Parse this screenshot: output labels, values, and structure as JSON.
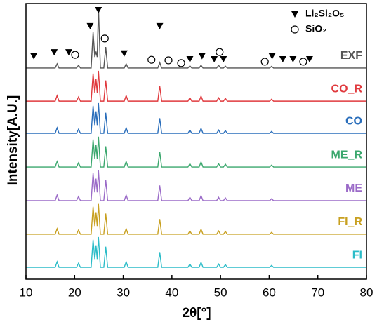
{
  "chart_data": {
    "type": "line",
    "xlabel": "2θ[°]",
    "ylabel": "Intensity[A.U.]",
    "xlim": [
      10,
      80
    ],
    "xticks": [
      10,
      20,
      30,
      40,
      50,
      60,
      70,
      80
    ],
    "ylim": [
      0,
      100
    ],
    "x": [
      10,
      16.0,
      16.4,
      16.8,
      20.4,
      20.8,
      21.2,
      23.4,
      23.8,
      24.15,
      24.4,
      24.65,
      24.9,
      25.3,
      26.0,
      26.4,
      26.8,
      30.2,
      30.6,
      31.0,
      37.1,
      37.5,
      37.9,
      43.3,
      43.7,
      44.1,
      45.6,
      46.0,
      46.4,
      49.2,
      49.6,
      50.0,
      50.6,
      51.0,
      51.4,
      60.1,
      60.5,
      60.9,
      80
    ],
    "series": [
      {
        "name": "EXF",
        "color": "#555555",
        "values": [
          76.6,
          76.6,
          78.1,
          76.6,
          76.6,
          77.6,
          76.6,
          76.6,
          89.6,
          80.6,
          82.6,
          80.6,
          98.6,
          76.6,
          76.6,
          84.2,
          76.6,
          76.6,
          78.1,
          76.6,
          76.6,
          78.6,
          76.6,
          76.6,
          77.4,
          76.6,
          76.6,
          77.6,
          76.6,
          76.6,
          77.6,
          76.6,
          76.6,
          77.3,
          76.6,
          76.6,
          77.2,
          76.6,
          76.6
        ]
      },
      {
        "name": "CO_R",
        "color": "#e03a3e",
        "values": [
          64.6,
          64.6,
          66.6,
          64.6,
          64.6,
          66.1,
          64.6,
          64.6,
          74.6,
          67.6,
          72.6,
          67.6,
          75.6,
          64.6,
          64.6,
          72.1,
          64.6,
          64.6,
          66.6,
          64.6,
          64.6,
          70.1,
          64.6,
          64.6,
          65.8,
          64.6,
          64.6,
          66.4,
          64.6,
          64.6,
          65.8,
          64.6,
          64.6,
          65.6,
          64.6,
          64.6,
          65.3,
          64.6,
          64.6
        ]
      },
      {
        "name": "CO",
        "color": "#2a6ebb",
        "values": [
          52.9,
          52.9,
          54.9,
          52.9,
          52.9,
          54.4,
          52.9,
          52.9,
          62.9,
          55.9,
          60.9,
          55.9,
          63.9,
          52.9,
          52.9,
          60.4,
          52.9,
          52.9,
          54.9,
          52.9,
          52.9,
          58.4,
          52.9,
          52.9,
          54.1,
          52.9,
          52.9,
          54.7,
          52.9,
          52.9,
          54.1,
          52.9,
          52.9,
          53.9,
          52.9,
          52.9,
          53.6,
          52.9,
          52.9
        ]
      },
      {
        "name": "ME_R",
        "color": "#3aa76d",
        "values": [
          40.7,
          40.7,
          42.7,
          40.7,
          40.7,
          42.2,
          40.7,
          40.7,
          50.7,
          43.7,
          48.7,
          43.7,
          51.7,
          40.7,
          40.7,
          48.2,
          40.7,
          40.7,
          42.7,
          40.7,
          40.7,
          46.2,
          40.7,
          40.7,
          41.9,
          40.7,
          40.7,
          42.5,
          40.7,
          40.7,
          41.9,
          40.7,
          40.7,
          41.7,
          40.7,
          40.7,
          41.4,
          40.7,
          40.7
        ]
      },
      {
        "name": "ME",
        "color": "#9b6bc8",
        "values": [
          28.5,
          28.5,
          30.5,
          28.5,
          28.5,
          30.0,
          28.5,
          28.5,
          38.5,
          31.5,
          36.5,
          31.5,
          39.5,
          28.5,
          28.5,
          36.0,
          28.5,
          28.5,
          30.5,
          28.5,
          28.5,
          34.0,
          28.5,
          28.5,
          29.7,
          28.5,
          28.5,
          30.3,
          28.5,
          28.5,
          29.7,
          28.5,
          28.5,
          29.5,
          28.5,
          28.5,
          29.2,
          28.5,
          28.5
        ]
      },
      {
        "name": "FI_R",
        "color": "#c8a020",
        "values": [
          16.3,
          16.3,
          18.3,
          16.3,
          16.3,
          17.8,
          16.3,
          16.3,
          26.3,
          19.3,
          24.3,
          19.3,
          27.3,
          16.3,
          16.3,
          23.8,
          16.3,
          16.3,
          18.3,
          16.3,
          16.3,
          21.8,
          16.3,
          16.3,
          17.5,
          16.3,
          16.3,
          18.1,
          16.3,
          16.3,
          17.5,
          16.3,
          16.3,
          17.3,
          16.3,
          16.3,
          17.0,
          16.3,
          16.3
        ]
      },
      {
        "name": "FI",
        "color": "#2bbcc8",
        "values": [
          4.3,
          4.3,
          6.3,
          4.3,
          4.3,
          5.8,
          4.3,
          4.3,
          14.3,
          7.3,
          12.3,
          7.3,
          15.3,
          4.3,
          4.3,
          11.8,
          4.3,
          4.3,
          6.3,
          4.3,
          4.3,
          9.8,
          4.3,
          4.3,
          5.5,
          4.3,
          4.3,
          6.1,
          4.3,
          4.3,
          5.5,
          4.3,
          4.3,
          5.3,
          4.3,
          4.3,
          5.0,
          4.3,
          4.3
        ]
      }
    ],
    "markers": [
      {
        "name": "Li₂Si₂O₅",
        "symbol": "triangle",
        "x": [
          11.6,
          15.8,
          18.8,
          23.2,
          24.9,
          30.2,
          37.5,
          43.7,
          46.2,
          48.7,
          50.6,
          60.6,
          62.8,
          64.9,
          68.3
        ],
        "y": [
          81.0,
          82.4,
          82.4,
          91.9,
          97.7,
          82.0,
          91.9,
          79.9,
          81.0,
          79.9,
          79.9,
          81.0,
          79.9,
          79.9,
          79.9
        ]
      },
      {
        "name": "SiO₂",
        "symbol": "circle",
        "x": [
          20.1,
          26.2,
          35.8,
          39.3,
          41.9,
          49.8,
          59.1,
          67.0
        ],
        "y": [
          81.4,
          87.3,
          79.6,
          79.4,
          78.4,
          82.4,
          78.9,
          78.9
        ]
      }
    ]
  }
}
